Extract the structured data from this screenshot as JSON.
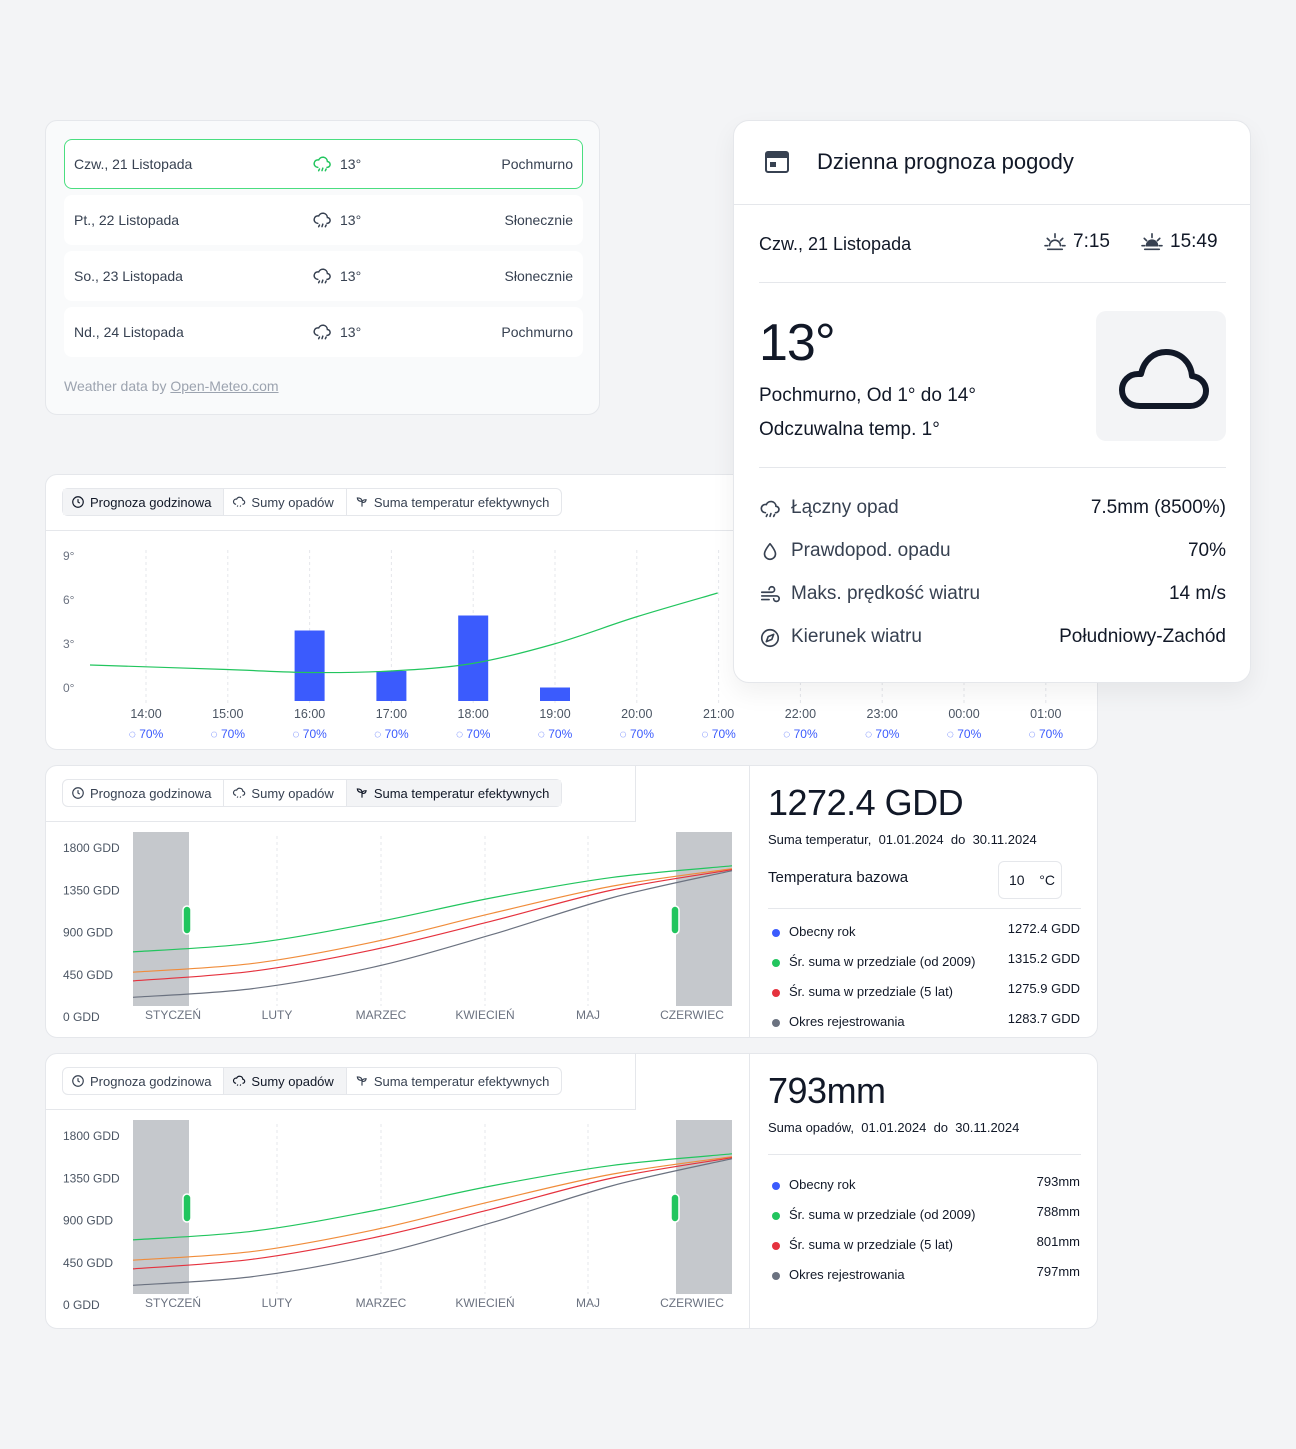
{
  "forecast_list": {
    "days": [
      {
        "date": "Czw., 21 Listopada",
        "temp": "13°",
        "condition": "Pochmurno"
      },
      {
        "date": "Pt., 22 Listopada",
        "temp": "13°",
        "condition": "Słonecznie"
      },
      {
        "date": "So., 23 Listopada",
        "temp": "13°",
        "condition": "Słonecznie"
      },
      {
        "date": "Nd., 24 Listopada",
        "temp": "13°",
        "condition": "Pochmurno"
      }
    ],
    "credit_prefix": "Weather data by ",
    "credit_link": "Open-Meteo.com"
  },
  "tabs": {
    "hourly": "Prognoza godzinowa",
    "rain": "Sumy opadów",
    "gdd": "Suma temperatur efektywnych"
  },
  "colors": {
    "accent": "#22c55e",
    "bar": "#3b5bfd",
    "orange": "#f08c3b",
    "red": "#e5323e",
    "gray": "#6b7280",
    "blue": "#3b5bfd"
  },
  "chart_data": [
    {
      "type": "bar",
      "categories": [
        "14:00",
        "15:00",
        "16:00",
        "17:00",
        "18:00",
        "19:00",
        "20:00",
        "21:00",
        "22:00",
        "23:00",
        "00:00",
        "01:00"
      ],
      "probability": [
        "70%",
        "70%",
        "70%",
        "70%",
        "70%",
        "70%",
        "70%",
        "70%",
        "70%",
        "70%",
        "70%",
        "70%"
      ],
      "yticks": [
        "9°",
        "6°",
        "3°",
        "0°"
      ],
      "ylim": [
        0,
        10
      ],
      "series": [
        {
          "values": [
            0,
            0,
            4.7,
            2.0,
            5.7,
            0.9,
            0,
            0,
            0,
            0,
            0,
            0
          ]
        },
        {
          "values": [
            2.4,
            2.1,
            1.9,
            2.0,
            2.5,
            3.8,
            5.6,
            7.2,
            null,
            null,
            null,
            null
          ]
        }
      ]
    },
    {
      "type": "line",
      "categories": [
        "STYCZEŃ",
        "LUTY",
        "MARZEC",
        "KWIECIEŃ",
        "MAJ",
        "CZERWIEC"
      ],
      "yticks": [
        "1800 GDD",
        "1350 GDD",
        "900 GDD",
        "450 GDD",
        "0 GDD"
      ],
      "ylim": [
        0,
        1800
      ],
      "series": [
        {
          "color": "green",
          "values": [
            560,
            650,
            860,
            1120,
            1330,
            1450
          ]
        },
        {
          "color": "orange",
          "values": [
            350,
            440,
            660,
            960,
            1240,
            1420
          ]
        },
        {
          "color": "red",
          "values": [
            260,
            360,
            580,
            880,
            1200,
            1410
          ]
        },
        {
          "color": "gray",
          "values": [
            90,
            180,
            400,
            740,
            1120,
            1400
          ]
        }
      ]
    },
    {
      "type": "line",
      "categories": [
        "STYCZEŃ",
        "LUTY",
        "MARZEC",
        "KWIECIEŃ",
        "MAJ",
        "CZERWIEC"
      ],
      "yticks": [
        "1800 GDD",
        "1350 GDD",
        "900 GDD",
        "450 GDD",
        "0 GDD"
      ],
      "ylim": [
        0,
        1800
      ],
      "series": [
        {
          "color": "green",
          "values": [
            560,
            650,
            860,
            1120,
            1330,
            1450
          ]
        },
        {
          "color": "orange",
          "values": [
            350,
            440,
            660,
            960,
            1240,
            1420
          ]
        },
        {
          "color": "red",
          "values": [
            260,
            360,
            580,
            880,
            1200,
            1410
          ]
        },
        {
          "color": "gray",
          "values": [
            90,
            180,
            400,
            740,
            1120,
            1400
          ]
        }
      ]
    }
  ],
  "gdd_panel": {
    "value": "1272.4 GDD",
    "range_label": "Suma temperatur,",
    "from": "01.01.2024",
    "to_word": "do",
    "to": "30.11.2024",
    "base_label": "Temperatura bazowa",
    "base_value": "10",
    "base_unit": "°C",
    "legend": [
      {
        "label": "Obecny rok",
        "value": "1272.4 GDD"
      },
      {
        "label": "Śr. suma w przedziale (od 2009)",
        "value": "1315.2 GDD"
      },
      {
        "label": "Śr. suma w przedziale (5 lat)",
        "value": "1275.9 GDD"
      },
      {
        "label": "Okres rejestrowania",
        "value": "1283.7 GDD"
      }
    ]
  },
  "rain_panel": {
    "value": "793mm",
    "range_label": "Suma opadów,",
    "from": "01.01.2024",
    "to_word": "do",
    "to": "30.11.2024",
    "legend": [
      {
        "label": "Obecny rok",
        "value": "793mm"
      },
      {
        "label": "Śr. suma w przedziale (od 2009)",
        "value": "788mm"
      },
      {
        "label": "Śr. suma w przedziale (5 lat)",
        "value": "801mm"
      },
      {
        "label": "Okres rejestrowania",
        "value": "797mm"
      }
    ]
  },
  "daily": {
    "title": "Dzienna prognoza pogody",
    "date": "Czw., 21 Listopada",
    "sunrise": "7:15",
    "sunset": "15:49",
    "temp": "13°",
    "condition": "Pochmurno, Od 1° do 14°",
    "feels": "Odczuwalna temp. 1°",
    "stats": [
      {
        "icon": "rain-cloud-icon",
        "label": "Łączny opad",
        "value": "7.5mm (8500%)"
      },
      {
        "icon": "droplet-icon",
        "label": "Prawdopod. opadu",
        "value": "70%"
      },
      {
        "icon": "wind-icon",
        "label": "Maks. prędkość wiatru",
        "value": "14 m/s"
      },
      {
        "icon": "compass-icon",
        "label": "Kierunek wiatru",
        "value": "Południowy-Zachód"
      }
    ]
  }
}
